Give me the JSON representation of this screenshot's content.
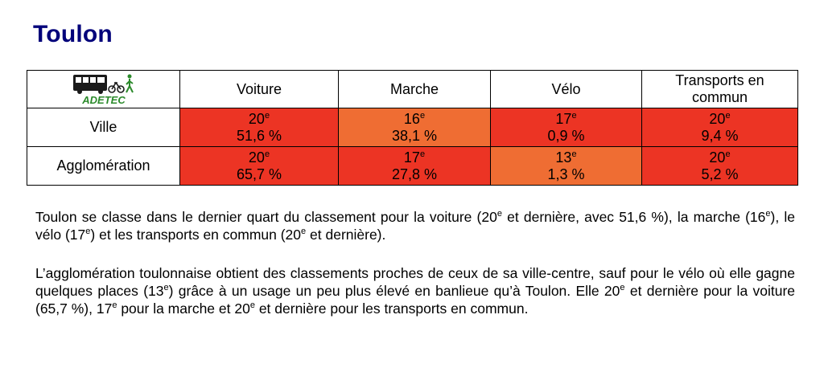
{
  "title": "Toulon",
  "logo": {
    "text": "ADETEC",
    "icon": "adetec-logo",
    "color": "#2b8a2b"
  },
  "colors": {
    "title": "#00007a",
    "worst": "#ec3424",
    "mid": "#ef6d33"
  },
  "table": {
    "headers": [
      "Voiture",
      "Marche",
      "Vélo",
      "Transports en commun"
    ],
    "rows": [
      {
        "label": "Ville",
        "cells": [
          {
            "rank": "20",
            "sup": "e",
            "pct": "51,6 %",
            "level": "red"
          },
          {
            "rank": "16",
            "sup": "e",
            "pct": "38,1 %",
            "level": "orange"
          },
          {
            "rank": "17",
            "sup": "e",
            "pct": "0,9 %",
            "level": "red"
          },
          {
            "rank": "20",
            "sup": "e",
            "pct": "9,4 %",
            "level": "red"
          }
        ]
      },
      {
        "label": "Agglomération",
        "cells": [
          {
            "rank": "20",
            "sup": "e",
            "pct": "65,7 %",
            "level": "red"
          },
          {
            "rank": "17",
            "sup": "e",
            "pct": "27,8 %",
            "level": "red"
          },
          {
            "rank": "13",
            "sup": "e",
            "pct": "1,3 %",
            "level": "orange"
          },
          {
            "rank": "20",
            "sup": "e",
            "pct": "5,2 %",
            "level": "red"
          }
        ]
      }
    ]
  },
  "paragraphs": {
    "p1": [
      "Toulon se classe dans le dernier quart du classement pour la voiture (20",
      "e",
      " et dernière, avec 51,6 %), la marche (16",
      "e",
      "), le vélo (17",
      "e",
      ") et les transports en commun (20",
      "e",
      " et dernière)."
    ],
    "p2": [
      "L’agglomération toulonnaise obtient des classements proches de ceux de sa ville-centre, sauf pour le vélo où elle gagne quelques places (13",
      "e",
      ") grâce à un usage un peu plus élevé en banlieue qu’à Toulon. Elle 20",
      "e",
      " et dernière pour la voiture (65,7 %), 17",
      "e",
      " pour la marche et 20",
      "e",
      " et dernière pour les transports en commun."
    ]
  }
}
